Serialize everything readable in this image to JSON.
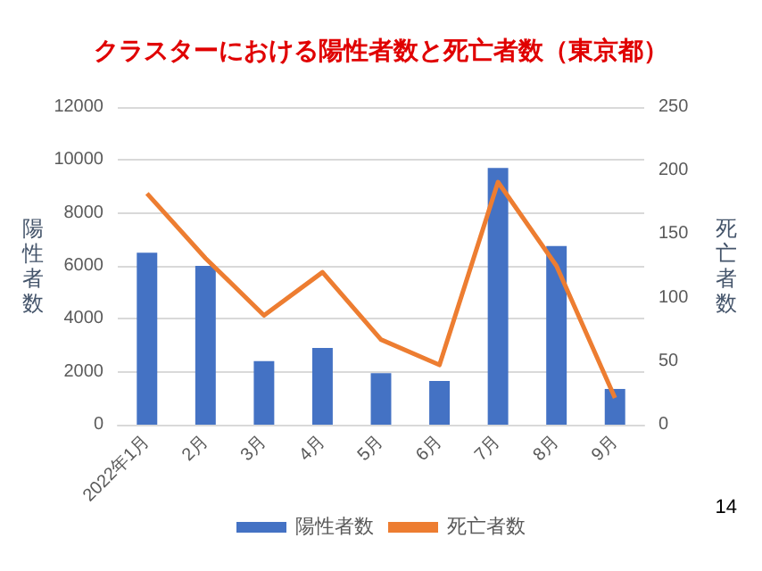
{
  "chart_data": {
    "type": "bar",
    "title": "クラスターにおける陽性者数と死亡者数（東京都）",
    "ylabel": "陽性者数",
    "y2label": "死亡者数",
    "categories": [
      "2022年1月",
      "2月",
      "3月",
      "4月",
      "5月",
      "6月",
      "7月",
      "8月",
      "9月"
    ],
    "series": [
      {
        "name": "陽性者数",
        "color": "#4472c4",
        "values": [
          6500,
          6000,
          2400,
          2900,
          1950,
          1650,
          9700,
          6750,
          1350
        ]
      },
      {
        "name": "死亡者数",
        "type": "line",
        "axis": "y2",
        "color": "#ed7d31",
        "values": [
          182,
          131,
          86,
          120,
          67,
          47,
          191,
          125,
          21
        ]
      }
    ],
    "ylim": [
      0,
      12000
    ],
    "yticks": [
      0,
      2000,
      4000,
      6000,
      8000,
      10000,
      12000
    ],
    "y2lim": [
      0,
      250
    ],
    "y2ticks": [
      0,
      50,
      100,
      150,
      200,
      250
    ],
    "grid": "y",
    "legend": "bottom",
    "marker": "none",
    "line_style": "solid",
    "annotations": [
      "14"
    ]
  }
}
